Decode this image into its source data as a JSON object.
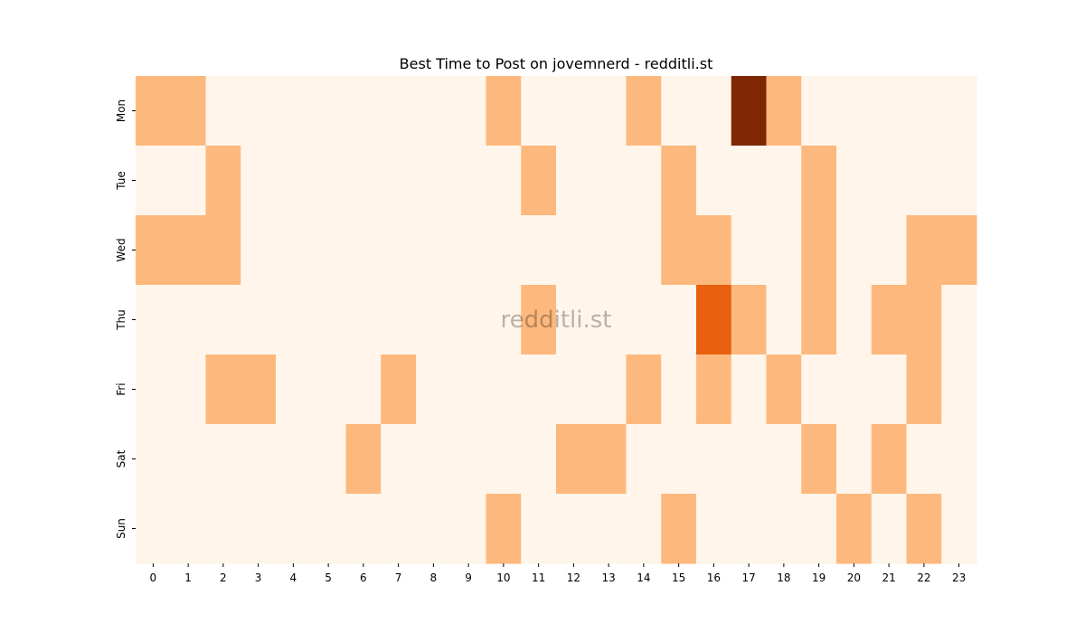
{
  "chart_data": {
    "type": "heatmap",
    "title": "Best Time to Post on jovemnerd - redditli.st",
    "watermark": "redditli.st",
    "xlabel": "",
    "ylabel": "",
    "x_categories": [
      "0",
      "1",
      "2",
      "3",
      "4",
      "5",
      "6",
      "7",
      "8",
      "9",
      "10",
      "11",
      "12",
      "13",
      "14",
      "15",
      "16",
      "17",
      "18",
      "19",
      "20",
      "21",
      "22",
      "23"
    ],
    "y_categories": [
      "Mon",
      "Tue",
      "Wed",
      "Thu",
      "Fri",
      "Sat",
      "Sun"
    ],
    "values": [
      [
        1,
        1,
        0,
        0,
        0,
        0,
        0,
        0,
        0,
        0,
        1,
        0,
        0,
        0,
        1,
        0,
        0,
        4,
        1,
        0,
        0,
        0,
        0,
        0
      ],
      [
        0,
        0,
        1,
        0,
        0,
        0,
        0,
        0,
        0,
        0,
        0,
        1,
        0,
        0,
        0,
        1,
        0,
        0,
        0,
        1,
        0,
        0,
        0,
        0
      ],
      [
        1,
        1,
        1,
        0,
        0,
        0,
        0,
        0,
        0,
        0,
        0,
        0,
        0,
        0,
        0,
        1,
        1,
        0,
        0,
        1,
        0,
        0,
        1,
        1
      ],
      [
        0,
        0,
        0,
        0,
        0,
        0,
        0,
        0,
        0,
        0,
        0,
        1,
        0,
        0,
        0,
        0,
        2,
        1,
        0,
        1,
        0,
        1,
        1,
        0
      ],
      [
        0,
        0,
        1,
        1,
        0,
        0,
        0,
        1,
        0,
        0,
        0,
        0,
        0,
        0,
        1,
        0,
        1,
        0,
        1,
        0,
        0,
        0,
        1,
        0
      ],
      [
        0,
        0,
        0,
        0,
        0,
        0,
        1,
        0,
        0,
        0,
        0,
        0,
        1,
        1,
        0,
        0,
        0,
        0,
        0,
        1,
        0,
        1,
        0,
        0
      ],
      [
        0,
        0,
        0,
        0,
        0,
        0,
        0,
        0,
        0,
        0,
        1,
        0,
        0,
        0,
        0,
        1,
        0,
        0,
        0,
        0,
        1,
        0,
        1,
        0
      ]
    ],
    "colormap": "Oranges",
    "color_levels": {
      "0": "#fff5eb",
      "1": "#fdb97d",
      "2": "#e9600f",
      "4": "#7f2704"
    },
    "grid": false,
    "legend": "none"
  }
}
